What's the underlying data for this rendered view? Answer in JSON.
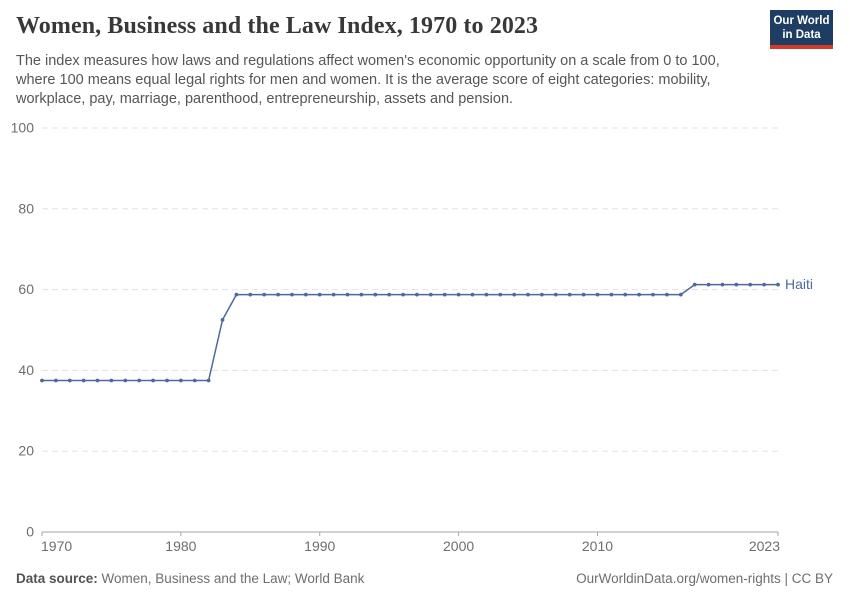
{
  "header": {
    "title": "Women, Business and the Law Index, 1970 to 2023",
    "subtitle_lines": [
      "The index measures how laws and regulations affect women's economic opportunity on a scale from 0 to 100,",
      "where 100 means equal legal rights for men and women. It is the average score of eight categories: mobility,",
      "workplace, pay, marriage, parenthood, entrepreneurship, assets and pension."
    ],
    "logo": {
      "line1": "Our World",
      "line2": "in Data",
      "bg_color": "#1d3d63",
      "accent_color": "#d23b27"
    }
  },
  "chart_data": {
    "type": "line",
    "title": "Women, Business and the Law Index, 1970 to 2023",
    "xlabel": "",
    "ylabel": "",
    "xlim": [
      1970,
      2023
    ],
    "ylim": [
      0,
      100
    ],
    "xticks": [
      1970,
      1980,
      1990,
      2000,
      2010,
      2023
    ],
    "yticks": [
      0,
      20,
      40,
      60,
      80,
      100
    ],
    "grid": "horizontal-dashed",
    "legend_position": "end-of-line-label",
    "series": [
      {
        "name": "Haiti",
        "color": "#4c6a9c",
        "points": [
          [
            1970,
            37.5
          ],
          [
            1971,
            37.5
          ],
          [
            1972,
            37.5
          ],
          [
            1973,
            37.5
          ],
          [
            1974,
            37.5
          ],
          [
            1975,
            37.5
          ],
          [
            1976,
            37.5
          ],
          [
            1977,
            37.5
          ],
          [
            1978,
            37.5
          ],
          [
            1979,
            37.5
          ],
          [
            1980,
            37.5
          ],
          [
            1981,
            37.5
          ],
          [
            1982,
            37.5
          ],
          [
            1983,
            52.5
          ],
          [
            1984,
            58.75
          ],
          [
            1985,
            58.75
          ],
          [
            1986,
            58.75
          ],
          [
            1987,
            58.75
          ],
          [
            1988,
            58.75
          ],
          [
            1989,
            58.75
          ],
          [
            1990,
            58.75
          ],
          [
            1991,
            58.75
          ],
          [
            1992,
            58.75
          ],
          [
            1993,
            58.75
          ],
          [
            1994,
            58.75
          ],
          [
            1995,
            58.75
          ],
          [
            1996,
            58.75
          ],
          [
            1997,
            58.75
          ],
          [
            1998,
            58.75
          ],
          [
            1999,
            58.75
          ],
          [
            2000,
            58.75
          ],
          [
            2001,
            58.75
          ],
          [
            2002,
            58.75
          ],
          [
            2003,
            58.75
          ],
          [
            2004,
            58.75
          ],
          [
            2005,
            58.75
          ],
          [
            2006,
            58.75
          ],
          [
            2007,
            58.75
          ],
          [
            2008,
            58.75
          ],
          [
            2009,
            58.75
          ],
          [
            2010,
            58.75
          ],
          [
            2011,
            58.75
          ],
          [
            2012,
            58.75
          ],
          [
            2013,
            58.75
          ],
          [
            2014,
            58.75
          ],
          [
            2015,
            58.75
          ],
          [
            2016,
            58.75
          ],
          [
            2017,
            61.25
          ],
          [
            2018,
            61.25
          ],
          [
            2019,
            61.25
          ],
          [
            2020,
            61.25
          ],
          [
            2021,
            61.25
          ],
          [
            2022,
            61.25
          ],
          [
            2023,
            61.25
          ]
        ]
      }
    ],
    "colors": {
      "gridline": "#e2e2e2",
      "axis": "#a6a6a6",
      "tick_label": "#6e6e6e"
    }
  },
  "footer": {
    "source_label": "Data source:",
    "source_text": " Women, Business and the Law; World Bank",
    "attribution": "OurWorldinData.org/women-rights | CC BY"
  }
}
